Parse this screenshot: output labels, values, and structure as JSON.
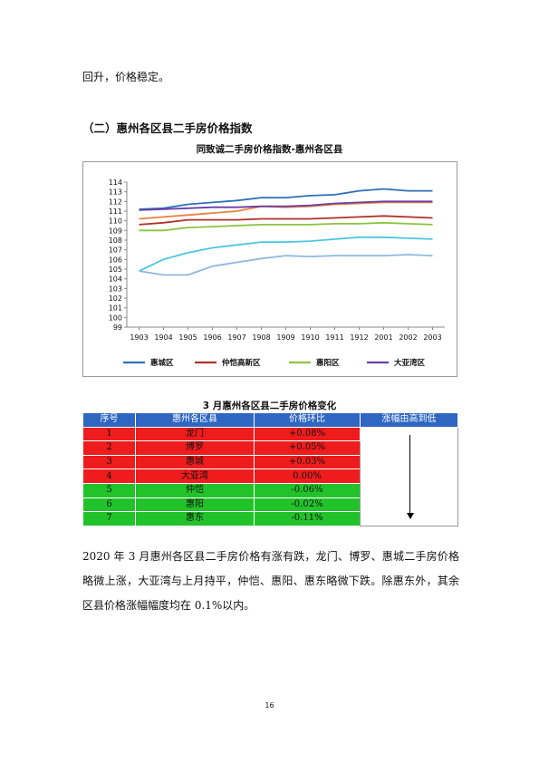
{
  "intro_text": "回升，价格稳定。",
  "section_heading": "（二）惠州各区县二手房价格指数",
  "chart_data": {
    "type": "line",
    "title": "同致诚二手房价格指数-惠州各区县",
    "categories": [
      "1903",
      "1904",
      "1905",
      "1906",
      "1907",
      "1908",
      "1909",
      "1910",
      "1911",
      "1912",
      "2001",
      "2002",
      "2003"
    ],
    "ylim": [
      99,
      114
    ],
    "yticks": [
      99,
      100,
      101,
      102,
      103,
      104,
      105,
      106,
      107,
      108,
      109,
      110,
      111,
      112,
      113,
      114
    ],
    "grid": false,
    "legend_position": "bottom",
    "series": [
      {
        "name": "惠城区",
        "color": "#2e6fb8",
        "values": [
          111.2,
          111.3,
          111.7,
          111.9,
          112.1,
          112.4,
          112.4,
          112.6,
          112.7,
          113.1,
          113.3,
          113.1,
          113.1
        ]
      },
      {
        "name": "",
        "color": "#e8823c",
        "values": [
          110.2,
          110.4,
          110.6,
          110.8,
          111.0,
          111.5,
          111.4,
          111.5,
          111.7,
          111.8,
          111.9,
          111.9,
          111.9
        ]
      },
      {
        "name": "仲恺高新区",
        "color": "#b1312a",
        "values": [
          109.6,
          109.8,
          110.1,
          110.1,
          110.1,
          110.2,
          110.2,
          110.2,
          110.3,
          110.4,
          110.5,
          110.4,
          110.3
        ]
      },
      {
        "name": "大亚湾区",
        "color": "#6a3ea8",
        "values": [
          111.1,
          111.2,
          111.3,
          111.4,
          111.4,
          111.5,
          111.5,
          111.6,
          111.8,
          111.9,
          112.0,
          112.0,
          112.0
        ]
      },
      {
        "name": "惠阳区",
        "color": "#8ac43f",
        "values": [
          109.0,
          109.0,
          109.3,
          109.4,
          109.5,
          109.6,
          109.6,
          109.6,
          109.7,
          109.7,
          109.8,
          109.7,
          109.6
        ]
      },
      {
        "name": "",
        "color": "#4bc6e0",
        "values": [
          104.8,
          106.0,
          106.7,
          107.2,
          107.5,
          107.8,
          107.8,
          107.9,
          108.1,
          108.3,
          108.3,
          108.2,
          108.1
        ]
      },
      {
        "name": "",
        "color": "#8fb8e0",
        "values": [
          104.8,
          104.4,
          104.4,
          105.3,
          105.7,
          106.1,
          106.4,
          106.3,
          106.4,
          106.4,
          106.4,
          106.5,
          106.4
        ]
      }
    ],
    "legend": [
      {
        "name": "惠城区",
        "color": "#2e6fb8"
      },
      {
        "name": "仲恺高新区",
        "color": "#b1312a"
      },
      {
        "name": "惠阳区",
        "color": "#8ac43f"
      },
      {
        "name": "大亚湾区",
        "color": "#6a3ea8"
      }
    ]
  },
  "table": {
    "title": "3 月惠州各区县二手房价格变化",
    "headers": [
      "序号",
      "惠州各区县",
      "价格环比",
      "涨幅由高到低"
    ],
    "rows": [
      {
        "no": "1",
        "name": "龙门",
        "change": "+0.08%",
        "color": "#ee1c1c"
      },
      {
        "no": "2",
        "name": "博罗",
        "change": "+0.05%",
        "color": "#ee1c1c"
      },
      {
        "no": "3",
        "name": "惠城",
        "change": "+0.03%",
        "color": "#ee1c1c"
      },
      {
        "no": "4",
        "name": "大亚湾",
        "change": "0.00%",
        "color": "#ee1c1c"
      },
      {
        "no": "5",
        "name": "仲恺",
        "change": "-0.06%",
        "color": "#22c22a"
      },
      {
        "no": "6",
        "name": "惠阳",
        "change": "-0.02%",
        "color": "#22c22a"
      },
      {
        "no": "7",
        "name": "惠东",
        "change": "-0.11%",
        "color": "#22c22a"
      }
    ]
  },
  "paragraph": "2020 年 3 月惠州各区县二手房价格有涨有跌，龙门、博罗、惠城二手房价格略微上涨，大亚湾与上月持平，仲恺、惠阳、惠东略微下跌。除惠东外，其余区县价格涨幅幅度均在 0.1%以内。",
  "page_number": "16"
}
